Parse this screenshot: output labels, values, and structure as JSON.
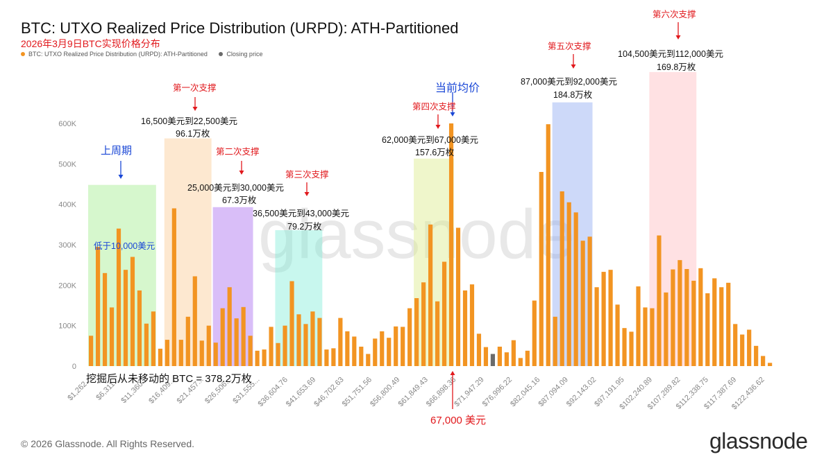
{
  "title": "BTC: UTXO Realized Price Distribution (URPD): ATH-Partitioned",
  "subtitle": "2026年3月9日BTC实现价格分布",
  "legend": [
    {
      "label": "BTC: UTXO Realized Price Distribution (URPD): ATH-Partitioned",
      "color": "#f29422"
    },
    {
      "label": "Closing price",
      "color": "#6b6b6b"
    }
  ],
  "colors": {
    "bar": "#f29422",
    "closing": "#6b6b6b",
    "axis_text": "#888888",
    "annotation_red": "#e1181c",
    "annotation_blue": "#1a47d6"
  },
  "footer": "© 2026 Glassnode. All Rights Reserved.",
  "logo": "glassnode",
  "watermark": "glassnode",
  "chart_data": {
    "type": "bar",
    "xlabel": "",
    "ylabel": "",
    "ylim": [
      0,
      640000
    ],
    "ytick_labels": [
      "0",
      "100K",
      "200K",
      "300K",
      "400K",
      "500K",
      "600K"
    ],
    "xtick_labels": [
      "$1,262...",
      "$6,311...",
      "$11,360...",
      "$16,409...",
      "$21,457...",
      "$26,506...",
      "$31,555...",
      "$36,604.76",
      "$41,653.69",
      "$46,702.63",
      "$51,751.56",
      "$56,800.49",
      "$61,849.43",
      "$66,898.36",
      "$71,947.29",
      "$76,996.22",
      "$82,045.16",
      "$87,094.09",
      "$92,143.02",
      "$97,191.95",
      "$102,240.89",
      "$107,289.82",
      "$112,338.75",
      "$117,387.69",
      "$122,436.62"
    ],
    "closing_price_index": 58,
    "values": [
      75000,
      295000,
      230000,
      145000,
      340000,
      238000,
      270000,
      187000,
      105000,
      135000,
      43000,
      65000,
      390000,
      65000,
      122000,
      222000,
      63000,
      100000,
      58000,
      143000,
      195000,
      118000,
      146000,
      75000,
      38000,
      41000,
      97000,
      57000,
      100000,
      210000,
      128000,
      104000,
      135000,
      119000,
      41000,
      44000,
      119000,
      86000,
      73000,
      48000,
      30000,
      68000,
      86000,
      70000,
      98000,
      97000,
      143000,
      168000,
      207000,
      350000,
      160000,
      258000,
      600000,
      342000,
      187000,
      202000,
      80000,
      47000,
      30000,
      48000,
      34000,
      64000,
      20000,
      38000,
      162000,
      480000,
      598000,
      122000,
      432000,
      405000,
      380000,
      310000,
      320000,
      195000,
      233000,
      238000,
      152000,
      94000,
      85000,
      197000,
      145000,
      143000,
      323000,
      182000,
      239000,
      262000,
      240000,
      211000,
      242000,
      180000,
      217000,
      195000,
      206000,
      104000,
      78000,
      90000,
      50000,
      25000,
      8000
    ],
    "support_zones": [
      {
        "name": "上周期",
        "detail": "低于10,000美元",
        "color": "rgba(120,230,90,0.30)",
        "ymax": 448000
      },
      {
        "name": "第一次支撑",
        "range": "16,500美元到22,500美元",
        "amount": "96.1万枚",
        "color": "rgba(250,190,120,0.35)",
        "ymax": 563000
      },
      {
        "name": "第二次支撑",
        "range": "25,000美元到30,000美元",
        "amount": "67.3万枚",
        "color": "rgba(170,110,240,0.45)",
        "ymax": 393000
      },
      {
        "name": "第三次支撑",
        "range": "36,500美元到43,000美元",
        "amount": "79.2万枚",
        "color": "rgba(110,235,210,0.38)",
        "ymax": 336000
      },
      {
        "name": "第四次支撑",
        "range": "62,000美元到67,000美元",
        "amount": "157.6万枚",
        "color": "rgba(220,235,140,0.45)",
        "ymax": 513000
      },
      {
        "name": "第五次支撑",
        "range": "87,000美元到92,000美元",
        "amount": "184.8万枚",
        "color": "rgba(130,160,240,0.40)",
        "ymax": 652000
      },
      {
        "name": "第六次支撑",
        "range": "104,500美元到112,000美元",
        "amount": "169.8万枚",
        "color": "rgba(255,170,175,0.35)",
        "ymax": 727000
      }
    ],
    "current_avg_label": "当前均价",
    "closing_price_label": "67,000 美元",
    "unmoved_note": "挖掘后从未移动的 BTC = 378.2万枚"
  }
}
